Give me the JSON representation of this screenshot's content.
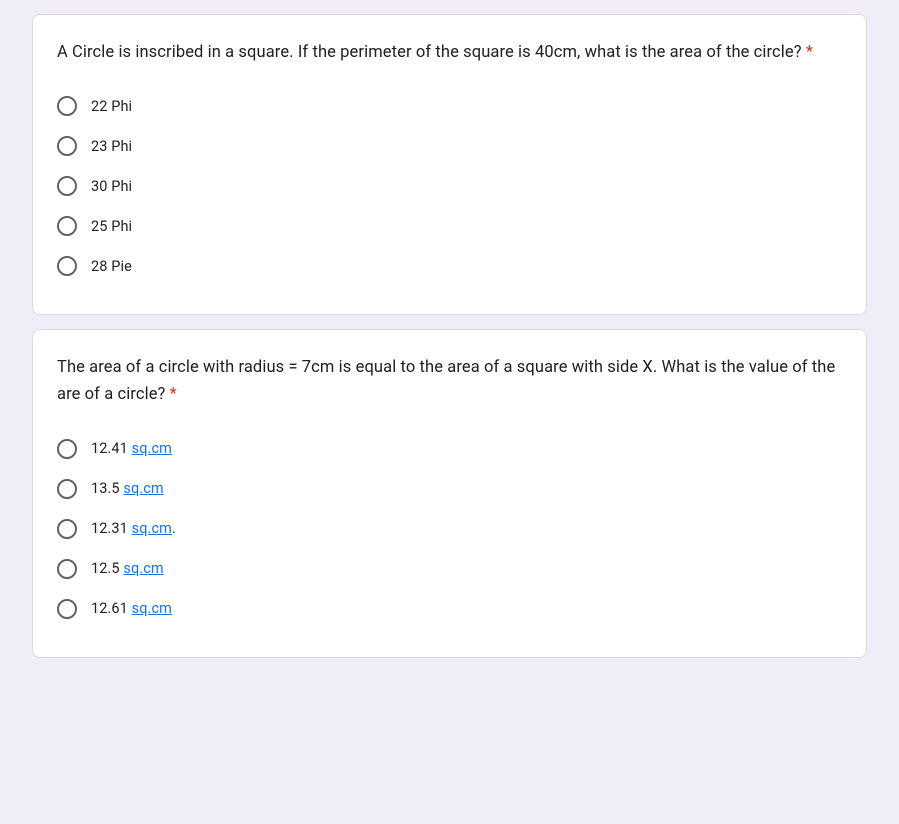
{
  "background_color": "#f0ecf8",
  "card_background": "#ffffff",
  "card_border_color": "#dadce0",
  "text_color": "#202124",
  "required_color": "#d93025",
  "link_color": "#1a73e8",
  "radio_border_color": "#5f6368",
  "questions": [
    {
      "text": "A Circle is inscribed in a square. If the perimeter of the square is 40cm, what is the area of the circle?",
      "required_marker": " *",
      "options": [
        {
          "label": "22 Phi",
          "has_link": false
        },
        {
          "label": "23 Phi",
          "has_link": false
        },
        {
          "label": "30 Phi",
          "has_link": false
        },
        {
          "label": "25 Phi",
          "has_link": false
        },
        {
          "label": "28 Pie",
          "has_link": false
        }
      ]
    },
    {
      "text": "The area of a circle with radius = 7cm is equal to the area of a square with side X. What is the value of the are of a circle?",
      "required_marker": " *",
      "options": [
        {
          "prefix": "12.41 ",
          "unit": "sq.cm",
          "suffix": "",
          "has_link": true
        },
        {
          "prefix": "13.5 ",
          "unit": "sq.cm",
          "suffix": "",
          "has_link": true
        },
        {
          "prefix": "12.31 ",
          "unit": "sq.cm",
          "suffix": ".",
          "has_link": true
        },
        {
          "prefix": "12.5 ",
          "unit": "sq.cm",
          "suffix": "",
          "has_link": true
        },
        {
          "prefix": "12.61 ",
          "unit": "sq.cm",
          "suffix": "",
          "has_link": true
        }
      ]
    }
  ]
}
